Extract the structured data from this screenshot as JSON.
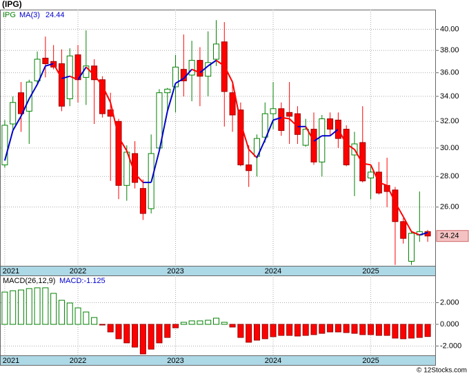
{
  "chart_data": [
    {
      "type": "candlestick",
      "title": "(IPG)",
      "series_name": "IPG",
      "categories": [
        "2021",
        null,
        null,
        null,
        null,
        null,
        null,
        null,
        null,
        "2022",
        null,
        null,
        null,
        null,
        null,
        null,
        null,
        null,
        null,
        null,
        null,
        "2023",
        null,
        null,
        null,
        null,
        null,
        null,
        null,
        null,
        null,
        null,
        null,
        "2024",
        null,
        null,
        null,
        null,
        null,
        null,
        null,
        null,
        null,
        null,
        null,
        "2025",
        null,
        null,
        null,
        null,
        null,
        null,
        null
      ],
      "open": [
        28.8,
        31.8,
        34.3,
        32.8,
        35.3,
        37.3,
        37.0,
        36.8,
        33.8,
        37.6,
        35.6,
        36.6,
        35.4,
        32.9,
        32.0,
        27.4,
        29.6,
        27.2,
        25.9,
        30.0,
        34.3,
        34.8,
        36.3,
        35.8,
        37.1,
        35.7,
        37.2,
        38.8,
        34.3,
        32.9,
        28.8,
        29.4,
        30.8,
        32.6,
        33.0,
        32.7,
        32.6,
        30.2,
        31.4,
        29.0,
        32.2,
        32.1,
        31.4,
        29.5,
        30.4,
        27.9,
        28.3,
        27.4,
        27.1,
        25.1,
        22.8,
        24.3,
        24.5
      ],
      "high": [
        32.1,
        34.0,
        35.2,
        35.4,
        37.9,
        39.3,
        38.5,
        38.1,
        38.2,
        38.5,
        39.9,
        37.2,
        35.7,
        34.3,
        32.2,
        30.2,
        30.5,
        27.8,
        31.0,
        34.6,
        34.7,
        37.6,
        39.5,
        38.9,
        38.3,
        39.8,
        40.9,
        40.7,
        35.2,
        33.5,
        30.2,
        31.0,
        33.5,
        35.2,
        33.5,
        35.2,
        33.2,
        32.2,
        32.7,
        32.5,
        32.7,
        32.7,
        31.7,
        31.2,
        33.2,
        28.8,
        29.0,
        29.3,
        27.3,
        25.3,
        24.5,
        27.0,
        24.6
      ],
      "low": [
        28.6,
        31.2,
        31.2,
        30.3,
        35.0,
        35.6,
        36.3,
        32.8,
        33.2,
        33.5,
        33.3,
        31.8,
        32.3,
        27.7,
        26.5,
        26.4,
        27.2,
        25.2,
        25.6,
        29.7,
        32.9,
        32.7,
        34.0,
        33.6,
        33.2,
        34.0,
        36.6,
        31.6,
        31.2,
        28.7,
        27.3,
        28.0,
        30.4,
        31.4,
        30.9,
        30.3,
        30.3,
        30.1,
        28.8,
        28.0,
        30.9,
        30.0,
        28.7,
        26.7,
        27.6,
        26.5,
        26.8,
        26.0,
        22.6,
        23.8,
        22.6,
        23.9,
        23.9
      ],
      "close": [
        31.7,
        33.5,
        32.6,
        35.2,
        37.2,
        36.8,
        36.5,
        33.2,
        37.5,
        35.4,
        36.6,
        35.4,
        32.6,
        32.4,
        27.4,
        29.7,
        27.6,
        25.6,
        29.6,
        34.3,
        34.6,
        36.5,
        35.3,
        37.1,
        35.7,
        36.9,
        38.6,
        34.4,
        32.5,
        28.8,
        28.4,
        30.7,
        32.6,
        33.0,
        31.3,
        32.4,
        31.0,
        31.4,
        29.0,
        32.2,
        31.4,
        30.7,
        28.8,
        30.3,
        27.7,
        28.3,
        26.9,
        27.0,
        25.1,
        24.1,
        24.4,
        24.5,
        24.24
      ],
      "up_color": "#008000",
      "down_color": "#ff0000",
      "ma": {
        "name": "MA(3)",
        "up_color": "#0000cc",
        "down_color": "#ff0000",
        "values": [
          29.1,
          31.3,
          32.4,
          33.8,
          35.0,
          36.6,
          36.8,
          35.5,
          35.7,
          35.4,
          36.5,
          35.8,
          34.9,
          33.5,
          30.8,
          29.8,
          28.2,
          27.6,
          27.6,
          29.8,
          32.8,
          35.1,
          35.5,
          36.3,
          36.0,
          36.6,
          37.1,
          36.6,
          35.2,
          31.9,
          29.9,
          29.3,
          30.6,
          32.1,
          32.3,
          32.2,
          31.6,
          31.6,
          30.5,
          30.9,
          30.9,
          31.4,
          30.3,
          29.9,
          28.9,
          28.8,
          27.6,
          27.4,
          26.3,
          25.4,
          24.5,
          24.3,
          24.44
        ]
      },
      "ylim": [
        22.55,
        41.95
      ],
      "log_scale": true,
      "grid": true,
      "yticks": [
        {
          "value": 26,
          "label": "26.00"
        },
        {
          "value": 28,
          "label": "28.00"
        },
        {
          "value": 30,
          "label": "30.00"
        },
        {
          "value": 32,
          "label": "32.00"
        },
        {
          "value": 34,
          "label": "34.00"
        },
        {
          "value": 36,
          "label": "36.00"
        },
        {
          "value": 38,
          "label": "38.00"
        },
        {
          "value": 40,
          "label": "40.00"
        }
      ]
    },
    {
      "type": "bar",
      "series": [
        {
          "name": "MACD(26,12,9)",
          "last_label": "MACD:-1.125",
          "up_color": "#008000",
          "down_color": "#ff0000",
          "values": [
            2.98,
            3.1,
            3.17,
            3.3,
            3.37,
            3.37,
            2.86,
            2.22,
            1.97,
            1.52,
            1.14,
            0.63,
            -0.06,
            -0.7,
            -1.33,
            -1.71,
            -2.1,
            -2.73,
            -2.29,
            -1.71,
            -1.21,
            -0.32,
            0.19,
            0.32,
            0.32,
            0.38,
            0.57,
            0.19,
            -0.25,
            -1.21,
            -1.65,
            -1.46,
            -1.33,
            -1.14,
            -1.02,
            -1.02,
            -1.08,
            -1.02,
            -0.95,
            -0.83,
            -0.7,
            -0.7,
            -0.76,
            -0.83,
            -0.95,
            -0.95,
            -1.02,
            -1.02,
            -1.27,
            -1.33,
            -1.27,
            -1.21,
            -1.125
          ]
        }
      ],
      "ylim": [
        -2.86,
        4.51
      ],
      "grid": true,
      "yticks": [
        {
          "value": -2,
          "label": "-2.000"
        },
        {
          "value": 0,
          "label": "0.000"
        },
        {
          "value": 2,
          "label": "2.000"
        }
      ]
    }
  ],
  "watermark": "© 12Stocks.com"
}
